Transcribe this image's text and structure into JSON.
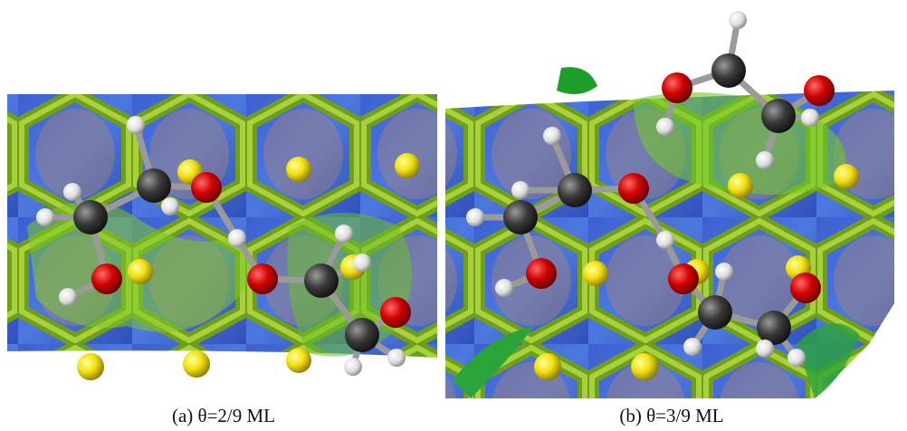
{
  "panels": [
    {
      "caption": "(a) θ=2/9 ML"
    },
    {
      "caption": "(b) θ=3/9 ML"
    }
  ]
}
